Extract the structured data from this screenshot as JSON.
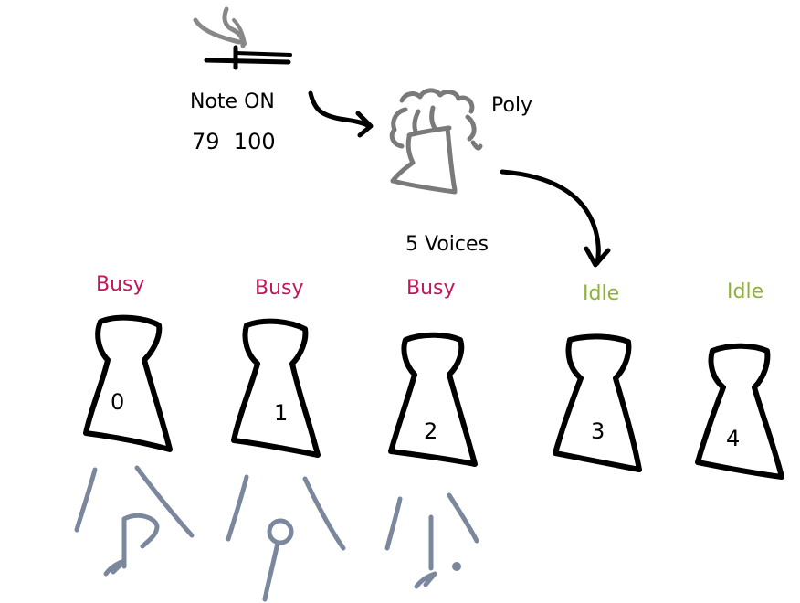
{
  "note": {
    "label": "Note ON",
    "values": "79  100"
  },
  "poly": {
    "label": "Poly",
    "voice_count_label": "5 Voices"
  },
  "voices": [
    {
      "index": "0",
      "status": "Busy"
    },
    {
      "index": "1",
      "status": "Busy"
    },
    {
      "index": "2",
      "status": "Busy"
    },
    {
      "index": "3",
      "status": "Idle"
    },
    {
      "index": "4",
      "status": "Idle"
    }
  ],
  "colors": {
    "busy": "#c2185b",
    "idle": "#8db33a",
    "ink": "#000000",
    "grey": "#7a7a7a",
    "slate": "#7a879c"
  }
}
